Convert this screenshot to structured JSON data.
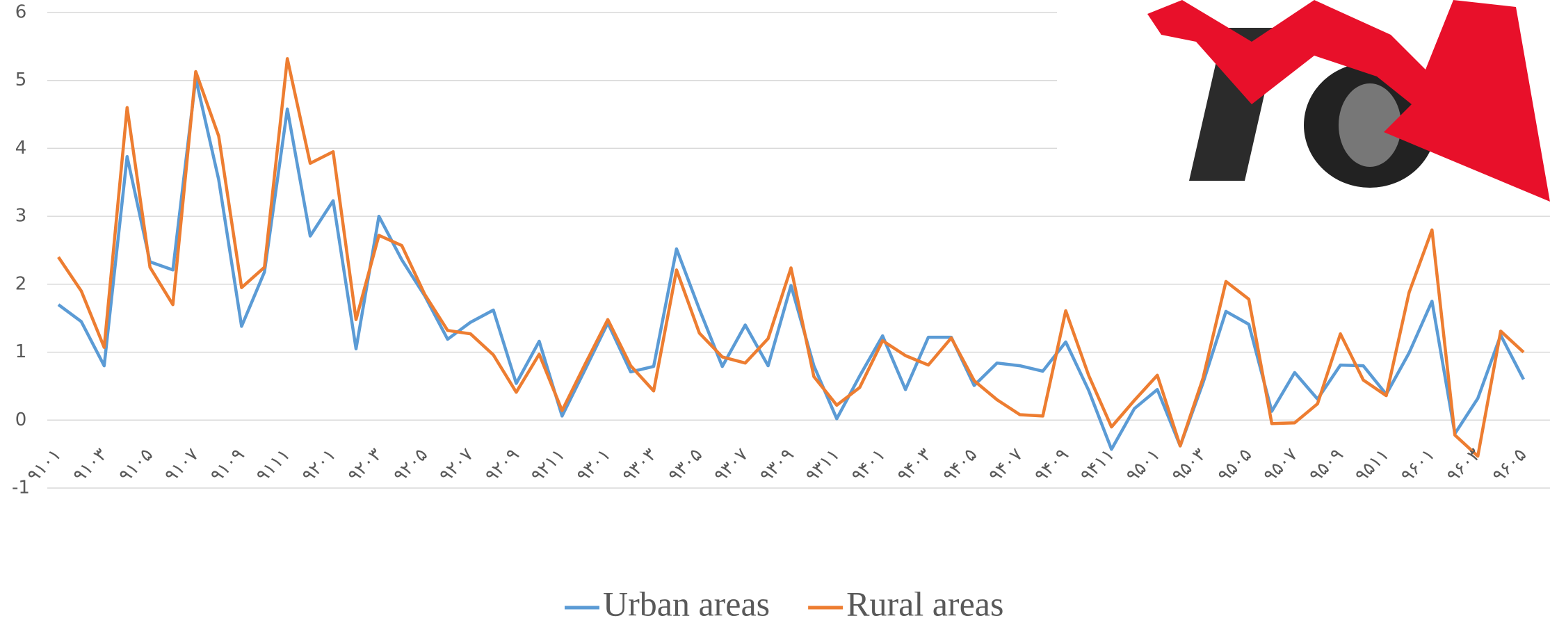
{
  "chart_data": {
    "type": "line",
    "categories": [
      "۹۱۰۱",
      null,
      "۹۱۰۳",
      null,
      "۹۱۰۵",
      null,
      "۹۱۰۷",
      null,
      "۹۱۰۹",
      null,
      "۹۱۱۱",
      null,
      "۹۲۰۱",
      null,
      "۹۲۰۳",
      null,
      "۹۲۰۵",
      null,
      "۹۲۰۷",
      null,
      "۹۲۰۹",
      null,
      "۹۲۱۱",
      null,
      "۹۳۰۱",
      null,
      "۹۳۰۳",
      null,
      "۹۳۰۵",
      null,
      "۹۳۰۷",
      null,
      "۹۳۰۹",
      null,
      "۹۳۱۱",
      null,
      "۹۴۰۱",
      null,
      "۹۴۰۳",
      null,
      "۹۴۰۵",
      null,
      "۹۴۰۷",
      null,
      "۹۴۰۹",
      null,
      "۹۴۱۱",
      null,
      "۹۵۰۱",
      null,
      "۹۵۰۳",
      null,
      "۹۵۰۵",
      null,
      "۹۵۰۷",
      null,
      "۹۵۰۹",
      null,
      "۹۵۱۱",
      null,
      "۹۶۰۱",
      null,
      "۹۶۰۳",
      null,
      "۹۶۰۵"
    ],
    "series": [
      {
        "name": "Urban areas",
        "color": "#5b9bd5",
        "values": [
          1.7,
          1.45,
          0.8,
          3.88,
          2.33,
          2.21,
          5.03,
          3.54,
          1.38,
          2.18,
          4.58,
          2.71,
          3.23,
          1.05,
          3.0,
          2.36,
          1.83,
          1.19,
          1.44,
          1.62,
          0.54,
          1.16,
          0.06,
          0.74,
          1.43,
          0.71,
          0.79,
          2.52,
          1.63,
          0.79,
          1.4,
          0.8,
          1.98,
          0.8,
          0.02,
          0.65,
          1.24,
          0.45,
          1.22,
          1.22,
          0.51,
          0.84,
          0.8,
          0.72,
          1.15,
          0.44,
          -0.43,
          0.17,
          0.45,
          -0.38,
          0.55,
          1.6,
          1.41,
          0.13,
          0.7,
          0.31,
          0.81,
          0.8,
          0.38,
          0.99,
          1.75,
          -0.2,
          0.32,
          1.25,
          0.6
        ]
      },
      {
        "name": "Rural areas",
        "color": "#ed7d31",
        "values": [
          2.4,
          1.9,
          1.07,
          4.6,
          2.25,
          1.7,
          5.13,
          4.18,
          1.95,
          2.25,
          5.32,
          3.78,
          3.95,
          1.48,
          2.72,
          2.57,
          1.85,
          1.32,
          1.27,
          0.96,
          0.41,
          0.97,
          0.14,
          0.82,
          1.48,
          0.8,
          0.43,
          2.21,
          1.28,
          0.93,
          0.84,
          1.2,
          2.24,
          0.64,
          0.22,
          0.48,
          1.17,
          0.95,
          0.81,
          1.21,
          0.58,
          0.3,
          0.08,
          0.06,
          1.61,
          0.66,
          -0.1,
          0.29,
          0.66,
          -0.38,
          0.62,
          2.04,
          1.78,
          -0.05,
          -0.04,
          0.24,
          1.27,
          0.59,
          0.36,
          1.88,
          2.8,
          -0.22,
          -0.53,
          1.31,
          1.0
        ]
      }
    ],
    "ylim": [
      -1,
      6
    ],
    "yticks": [
      -1,
      0,
      1,
      2,
      3,
      4,
      5,
      6
    ],
    "grid": true,
    "legend": "bottom"
  }
}
